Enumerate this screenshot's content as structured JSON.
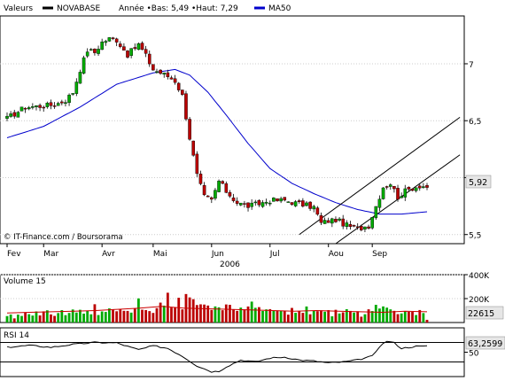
{
  "chart_data": [
    {
      "type": "candlestick",
      "header": {
        "label": "Valeurs",
        "series_name": "NOVABASE",
        "stats_text": "Année •Bas: 5,49 •Haut: 7,29",
        "ma_label": "MA50"
      },
      "colors": {
        "up": "#00aa00",
        "down": "#bb0000",
        "ma": "#0000cc",
        "channel": "#000000",
        "last_box": "#e6e6e6"
      },
      "x_months": [
        "Fev",
        "Mar",
        "Avr",
        "Mai",
        "Jun",
        "Jul",
        "Aou",
        "Sep"
      ],
      "x_year": "2006",
      "y_ticks": [
        "7",
        "6,5",
        "6",
        "5,5"
      ],
      "y_tick_values": [
        7.0,
        6.5,
        6.0,
        5.5
      ],
      "ylim": [
        5.42,
        7.42
      ],
      "last_value": "5,92",
      "watermark": "© IT-Finance.com / Boursorama",
      "anchors": [
        [
          0,
          6.52
        ],
        [
          5,
          6.62
        ],
        [
          10,
          6.63
        ],
        [
          13,
          6.64
        ],
        [
          16,
          6.68
        ],
        [
          18,
          6.75
        ],
        [
          20,
          6.95
        ],
        [
          22,
          7.12
        ],
        [
          24,
          7.1
        ],
        [
          26,
          7.19
        ],
        [
          28,
          7.22
        ],
        [
          30,
          7.21
        ],
        [
          33,
          7.08
        ],
        [
          36,
          7.17
        ],
        [
          38,
          7.07
        ],
        [
          40,
          6.95
        ],
        [
          44,
          6.89
        ],
        [
          46,
          6.85
        ],
        [
          48,
          6.72
        ],
        [
          50,
          6.35
        ],
        [
          52,
          6.02
        ],
        [
          54,
          5.83
        ],
        [
          56,
          5.8
        ],
        [
          58,
          5.97
        ],
        [
          60,
          5.88
        ],
        [
          63,
          5.78
        ],
        [
          66,
          5.75
        ],
        [
          69,
          5.77
        ],
        [
          72,
          5.8
        ],
        [
          76,
          5.8
        ],
        [
          80,
          5.77
        ],
        [
          84,
          5.74
        ],
        [
          86,
          5.6
        ],
        [
          88,
          5.62
        ],
        [
          90,
          5.63
        ],
        [
          93,
          5.58
        ],
        [
          96,
          5.55
        ],
        [
          99,
          5.58
        ],
        [
          101,
          5.75
        ],
        [
          103,
          5.92
        ],
        [
          105,
          5.95
        ],
        [
          107,
          5.83
        ],
        [
          109,
          5.88
        ],
        [
          111,
          5.91
        ],
        [
          113,
          5.93
        ],
        [
          115,
          5.92
        ]
      ],
      "ma50": [
        [
          0,
          6.35
        ],
        [
          10,
          6.45
        ],
        [
          20,
          6.62
        ],
        [
          30,
          6.82
        ],
        [
          40,
          6.92
        ],
        [
          46,
          6.95
        ],
        [
          50,
          6.9
        ],
        [
          55,
          6.75
        ],
        [
          60,
          6.55
        ],
        [
          66,
          6.3
        ],
        [
          72,
          6.08
        ],
        [
          78,
          5.95
        ],
        [
          84,
          5.86
        ],
        [
          90,
          5.78
        ],
        [
          96,
          5.72
        ],
        [
          102,
          5.68
        ],
        [
          108,
          5.68
        ],
        [
          115,
          5.7
        ]
      ],
      "channel_lines": [
        [
          [
            80,
            5.5
          ],
          [
            124,
            6.53
          ]
        ],
        [
          [
            90,
            5.42
          ],
          [
            124,
            6.2
          ]
        ]
      ]
    },
    {
      "type": "bar",
      "label": "Volume 15",
      "y_ticks": [
        "400K",
        "200K"
      ],
      "y_tick_values": [
        400000,
        200000
      ],
      "ylim": [
        0,
        400000
      ],
      "last_value": "22615",
      "volume_ma_color": "#cc0000",
      "values": [
        53659,
        66920,
        34532,
        66051,
        54922,
        82045,
        69657,
        58278,
        92549,
        59637,
        93209,
        102049,
        67766,
        55305,
        79008,
        103235,
        61458,
        80152,
        108911,
        83296,
        106508,
        74521,
        97924,
        68853,
        152800,
        62584,
        92574,
        88497,
        117745,
        108522,
        94059,
        112005,
        97823,
        97062,
        82733,
        115962,
        201580,
        107286,
        104059,
        95287,
        80087,
        120244,
        166244,
        141452,
        249008,
        124924,
        125005,
        207101,
        109963,
        238125,
        209734,
        195001,
        146200,
        152000,
        150050,
        141900,
        105017,
        134484,
        127124,
        102745,
        151016,
        148187,
        108800,
        96850,
        124590,
        109512,
        133993,
        174710,
        123102,
        128562,
        96429,
        109758,
        111815,
        96850,
        100646,
        96713,
        99713,
        65938,
        122045,
        81405,
        95306,
        80946,
        134102,
        68998,
        98648,
        94669,
        101519,
        90287,
        103745,
        52106,
        106327,
        75640,
        85216,
        111380,
        97004,
        82931,
        93911,
        48659,
        69232,
        110418,
        95839,
        148153,
        117014,
        134588,
        124306,
        110014,
        97493,
        70106,
        75549,
        95739,
        90054,
        88810,
        62627,
        104313,
        78880,
        22615
      ],
      "ma": [
        80000,
        85000,
        90000,
        95000,
        100000,
        110000,
        120000,
        135000,
        120000,
        115000,
        110000,
        105000,
        100000,
        95000,
        100000,
        95000,
        90000,
        85000,
        95000,
        90000
      ]
    },
    {
      "type": "line",
      "label": "RSI 14",
      "y_ticks": [
        "50"
      ],
      "y_tick_values": [
        50
      ],
      "ylim": [
        0,
        100
      ],
      "reference_lines": [
        70,
        30
      ],
      "last_value": "63,2599",
      "anchors": [
        [
          0,
          60
        ],
        [
          6,
          64
        ],
        [
          12,
          60
        ],
        [
          18,
          66
        ],
        [
          24,
          70
        ],
        [
          30,
          69
        ],
        [
          36,
          55
        ],
        [
          40,
          63
        ],
        [
          44,
          58
        ],
        [
          48,
          42
        ],
        [
          52,
          22
        ],
        [
          56,
          10
        ],
        [
          58,
          11
        ],
        [
          60,
          20
        ],
        [
          64,
          34
        ],
        [
          68,
          30
        ],
        [
          72,
          38
        ],
        [
          76,
          40
        ],
        [
          80,
          34
        ],
        [
          84,
          32
        ],
        [
          88,
          28
        ],
        [
          92,
          30
        ],
        [
          96,
          34
        ],
        [
          100,
          42
        ],
        [
          102,
          62
        ],
        [
          104,
          73
        ],
        [
          106,
          69
        ],
        [
          108,
          58
        ],
        [
          110,
          60
        ],
        [
          112,
          62
        ],
        [
          114,
          62
        ],
        [
          115,
          63.26
        ]
      ]
    }
  ]
}
